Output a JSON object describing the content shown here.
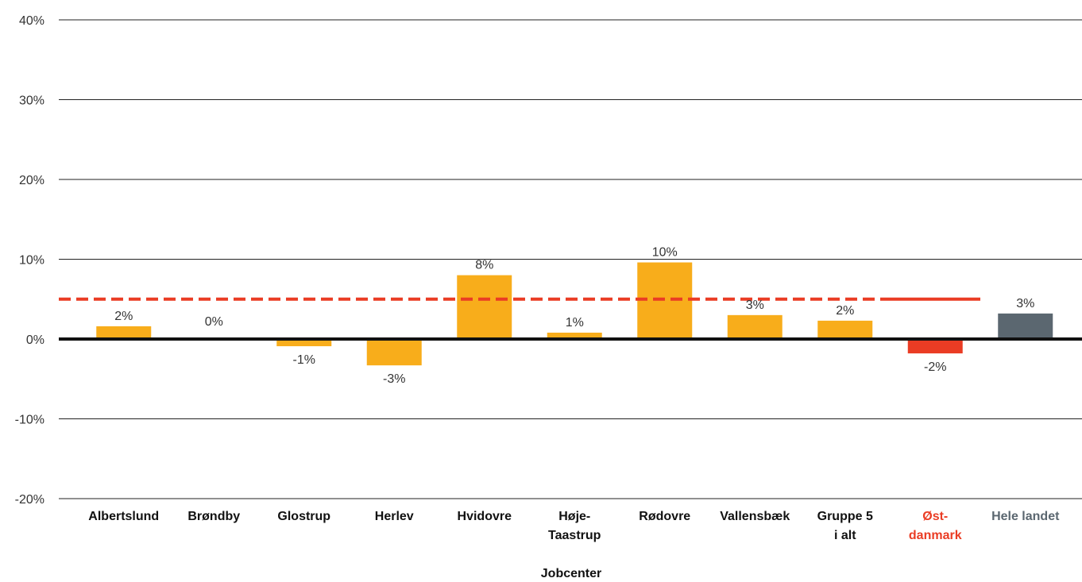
{
  "chart_data": {
    "type": "bar",
    "title": "",
    "xlabel": "Jobcenter",
    "ylabel": "",
    "ylim": [
      -20,
      40
    ],
    "yticks": [
      -20,
      -10,
      0,
      10,
      20,
      30,
      40
    ],
    "ytick_labels": [
      "-20%",
      "-10%",
      "0%",
      "10%",
      "20%",
      "30%",
      "40%"
    ],
    "grid": true,
    "categories": [
      {
        "lines": [
          "Albertslund"
        ],
        "color": "#111111"
      },
      {
        "lines": [
          "Brøndby"
        ],
        "color": "#111111"
      },
      {
        "lines": [
          "Glostrup"
        ],
        "color": "#111111"
      },
      {
        "lines": [
          "Herlev"
        ],
        "color": "#111111"
      },
      {
        "lines": [
          "Hvidovre"
        ],
        "color": "#111111"
      },
      {
        "lines": [
          "Høje-",
          "Taastrup"
        ],
        "color": "#111111"
      },
      {
        "lines": [
          "Rødovre"
        ],
        "color": "#111111"
      },
      {
        "lines": [
          "Vallensbæk"
        ],
        "color": "#111111"
      },
      {
        "lines": [
          "Gruppe 5",
          "i alt"
        ],
        "color": "#111111"
      },
      {
        "lines": [
          "Øst-",
          "danmark"
        ],
        "color": "#ea3c24"
      },
      {
        "lines": [
          "Hele landet"
        ],
        "color": "#5b6770"
      }
    ],
    "values": [
      1.6,
      0.0,
      -0.9,
      -3.3,
      8.0,
      0.8,
      9.6,
      3.0,
      2.3,
      -1.8,
      3.2
    ],
    "data_labels": [
      "2%",
      "0%",
      "-1%",
      "-3%",
      "8%",
      "1%",
      "10%",
      "3%",
      "2%",
      "-2%",
      "3%"
    ],
    "bar_colors": [
      "#f8ad1b",
      "#f8ad1b",
      "#f8ad1b",
      "#f8ad1b",
      "#f8ad1b",
      "#f8ad1b",
      "#f8ad1b",
      "#f8ad1b",
      "#f8ad1b",
      "#ea3c24",
      "#5b6770"
    ],
    "reference_line": {
      "value": 5.0,
      "color": "#ea3c24",
      "style": "dashed",
      "solid_segment_category": "Øst-danmark"
    }
  }
}
